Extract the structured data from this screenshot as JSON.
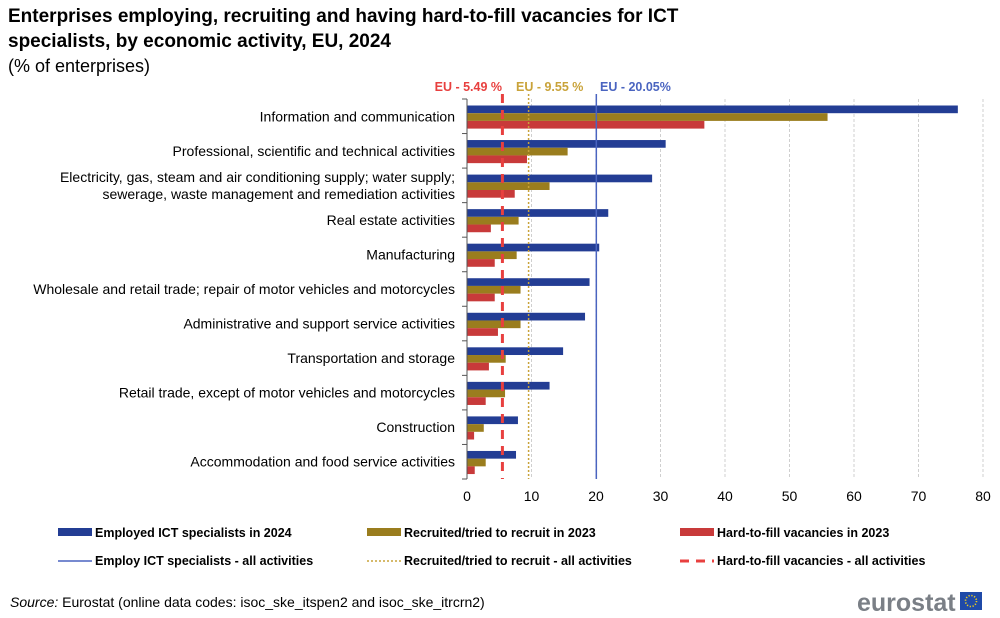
{
  "title_line1": "Enterprises employing, recruiting and having hard-to-fill vacancies for ICT",
  "title_line2": "specialists, by economic activity, EU, 2024",
  "subtitle": "(% of enterprises)",
  "source_prefix": "Source:",
  "source_text": " Eurostat (online data codes: isoc_ske_itspen2 and isoc_ske_itrcrn2)",
  "logo_text": "eurostat",
  "colors": {
    "employed": "#233d94",
    "recruited": "#9a7d1e",
    "hard_to_fill": "#c83a3a",
    "eu_employed": "#4a64c0",
    "eu_recruited": "#c9a33a",
    "eu_hard_to_fill": "#e8403f"
  },
  "chart_data": {
    "type": "bar",
    "orientation": "horizontal",
    "categories": [
      [
        "Information and communication"
      ],
      [
        "Professional, scientific and technical activities"
      ],
      [
        "Electricity, gas, steam and air conditioning supply; water supply;",
        "sewerage, waste management and remediation activities"
      ],
      [
        "Real estate activities"
      ],
      [
        "Manufacturing"
      ],
      [
        "Wholesale and retail trade; repair of motor vehicles and motorcycles"
      ],
      [
        "Administrative and support service activities"
      ],
      [
        "Transportation and storage"
      ],
      [
        "Retail trade, except of motor vehicles and motorcycles"
      ],
      [
        "Construction"
      ],
      [
        "Accommodation and food service activities"
      ]
    ],
    "series": [
      {
        "name": "Employed ICT specialists in 2024",
        "values": [
          76.1,
          30.8,
          28.7,
          21.9,
          20.5,
          19.0,
          18.3,
          14.9,
          12.8,
          7.9,
          7.6
        ]
      },
      {
        "name": "Recruited/tried to recruit in 2023",
        "values": [
          55.9,
          15.6,
          12.8,
          8.0,
          7.7,
          8.3,
          8.3,
          6.0,
          5.9,
          2.6,
          2.9
        ]
      },
      {
        "name": "Hard-to-fill vacancies in 2023",
        "values": [
          36.8,
          9.3,
          7.4,
          3.7,
          4.3,
          4.3,
          4.8,
          3.4,
          2.9,
          1.1,
          1.2
        ]
      }
    ],
    "reference_lines": [
      {
        "name": "Employ ICT specialists - all activities",
        "value": 20.05,
        "label": "EU - 20.05%",
        "style": "solid"
      },
      {
        "name": "Recruited/tried to recruit - all activities",
        "value": 9.55,
        "label": "EU - 9.55 %",
        "style": "dotted"
      },
      {
        "name": "Hard-to-fill vacancies - all activities",
        "value": 5.49,
        "label": "EU - 5.49 %",
        "style": "dashed"
      }
    ],
    "xlim": [
      0,
      80
    ],
    "xticks": [
      "0",
      "10",
      "20",
      "30",
      "40",
      "50",
      "60",
      "70",
      "80"
    ],
    "grid": true,
    "legend_position": "bottom"
  }
}
